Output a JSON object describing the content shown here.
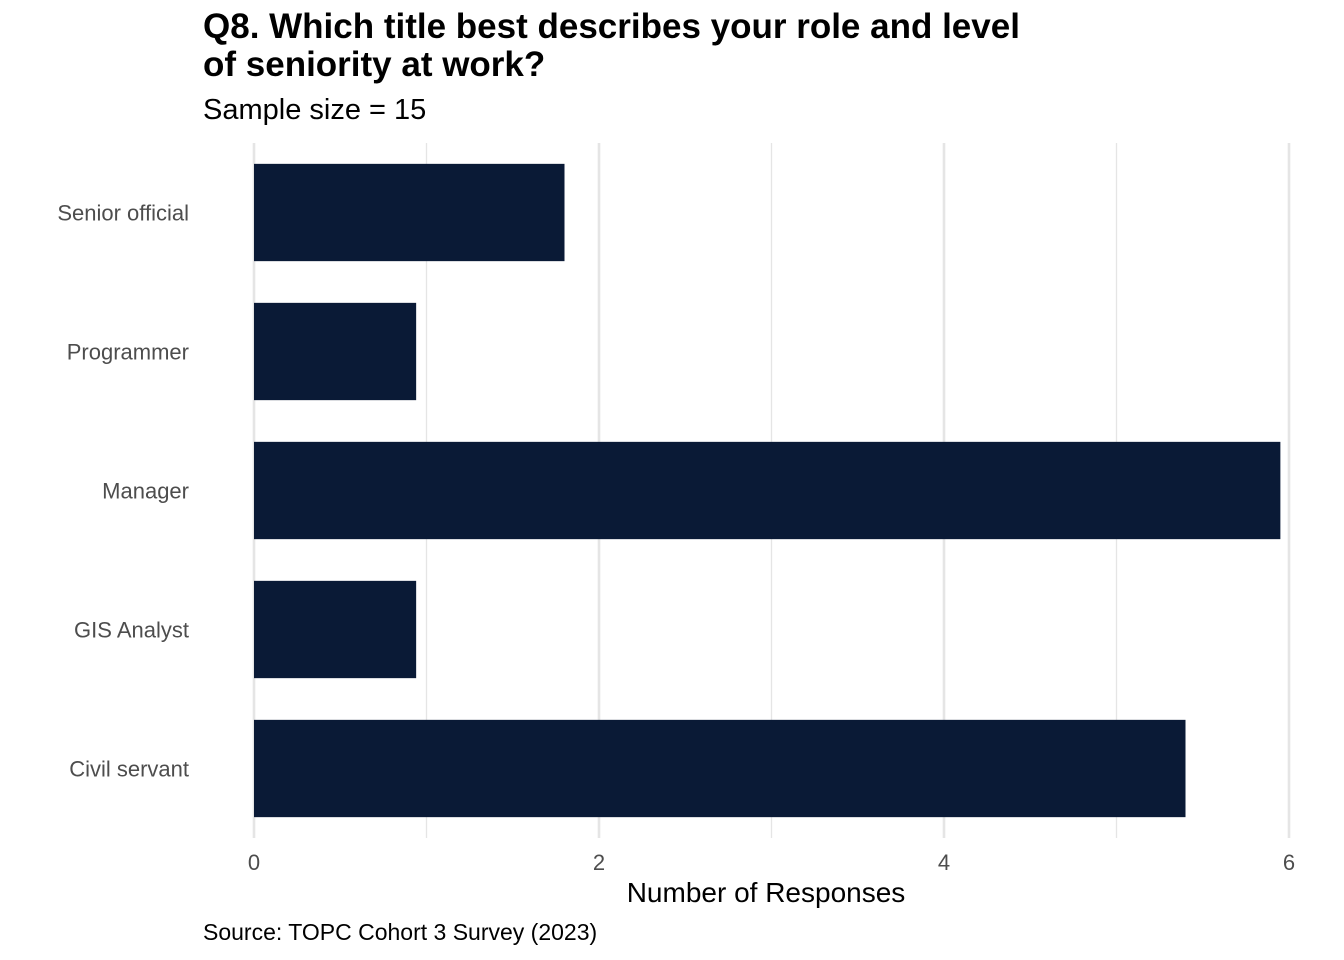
{
  "chart_data": {
    "type": "bar",
    "orientation": "horizontal",
    "title": "Q8. Which title best describes your role and level of seniority at work?",
    "title_lines": [
      "Q8. Which title best describes your role and level",
      "of seniority at work?"
    ],
    "subtitle": "Sample size = 15",
    "caption": "Source: TOPC Cohort 3 Survey (2023)",
    "xlabel": "Number of Responses",
    "ylabel": "",
    "categories": [
      "Senior official",
      "Programmer",
      "Manager",
      "GIS Analyst",
      "Civil servant"
    ],
    "values": [
      1.8,
      0.94,
      5.95,
      0.94,
      5.4
    ],
    "xlim": [
      0,
      6
    ],
    "x_ticks": [
      0,
      2,
      4,
      6
    ],
    "grid": true,
    "legend": "none",
    "bar_color": "#0a1a36",
    "grid_color": "#e5e5e5"
  }
}
